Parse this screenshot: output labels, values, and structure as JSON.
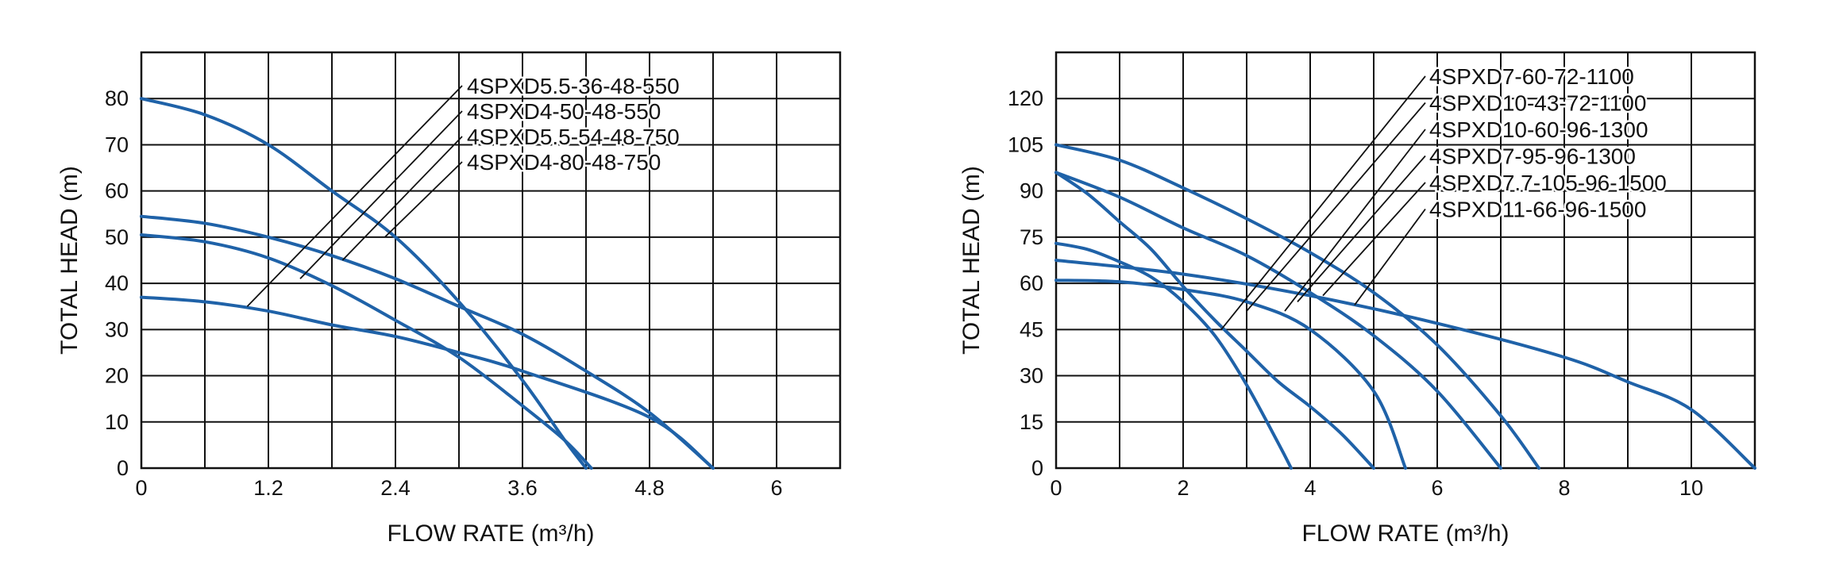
{
  "chart_data": [
    {
      "type": "line",
      "xlabel": "FLOW  RATE (m³/h)",
      "ylabel": "TOTAL HEAD (m)",
      "xlim": [
        0,
        6.6
      ],
      "ylim": [
        0,
        90
      ],
      "x_ticks": [
        0,
        1.2,
        2.4,
        3.6,
        4.8,
        6
      ],
      "y_ticks": [
        0,
        10,
        20,
        30,
        40,
        50,
        60,
        70,
        80
      ],
      "x_tick_labels": [
        "0",
        "1.2",
        "2.4",
        "3.6",
        "4.8",
        "6"
      ],
      "y_tick_labels": [
        "0",
        "10",
        "20",
        "30",
        "40",
        "50",
        "60",
        "70",
        "80"
      ],
      "grid": true,
      "legend_position": "top-right",
      "series": [
        {
          "name": "4SPXD5.5-36-48-550",
          "x": [
            0,
            0.6,
            1.2,
            1.8,
            2.4,
            3.0,
            3.6,
            4.0,
            4.2
          ],
          "y": [
            80,
            76.5,
            70,
            60,
            50,
            36,
            19,
            6,
            0
          ],
          "leader_end": [
            1.0,
            35
          ]
        },
        {
          "name": "4SPXD4-50-48-550",
          "x": [
            0,
            0.6,
            1.2,
            1.8,
            2.4,
            3.0,
            3.6,
            4.8,
            5.4
          ],
          "y": [
            37,
            36,
            34,
            31,
            28.5,
            25,
            21,
            11,
            0
          ],
          "leader_end": [
            1.5,
            41
          ]
        },
        {
          "name": "4SPXD5.5-54-48-750",
          "x": [
            0,
            0.6,
            1.2,
            1.8,
            2.4,
            3.0,
            3.6,
            4.2,
            4.8,
            5.4
          ],
          "y": [
            54.5,
            53,
            50,
            46,
            41,
            35,
            29,
            21,
            12,
            0
          ],
          "leader_end": [
            1.9,
            45
          ]
        },
        {
          "name": "4SPXD4-80-48-750",
          "x": [
            0,
            0.6,
            1.2,
            1.8,
            2.4,
            3.0,
            3.6,
            4.0,
            4.25
          ],
          "y": [
            50.5,
            49,
            45.5,
            39.5,
            32,
            24,
            13.5,
            6,
            0
          ],
          "leader_end": [
            2.3,
            50
          ]
        }
      ]
    },
    {
      "type": "line",
      "xlabel": "FLOW  RATE (m³/h)",
      "ylabel": "TOTAL HEAD (m)",
      "xlim": [
        0,
        11
      ],
      "ylim": [
        0,
        135
      ],
      "x_ticks": [
        0,
        2,
        4,
        6,
        8,
        10
      ],
      "y_ticks": [
        0,
        15,
        30,
        45,
        60,
        75,
        90,
        105,
        120
      ],
      "x_tick_labels": [
        "0",
        "2",
        "4",
        "6",
        "8",
        "10"
      ],
      "y_tick_labels": [
        "0",
        "15",
        "30",
        "45",
        "60",
        "75",
        "90",
        "105",
        "120"
      ],
      "grid": true,
      "legend_position": "top-right",
      "series": [
        {
          "name": "4SPXD7-60-72-1100",
          "x": [
            0,
            0.5,
            1.0,
            1.5,
            2.0,
            2.5,
            3.0,
            3.5,
            3.7
          ],
          "y": [
            73,
            71,
            67,
            62,
            54,
            43,
            27,
            8,
            0
          ],
          "leader_end": [
            2.6,
            45
          ]
        },
        {
          "name": "4SPXD10-43-72-1100",
          "x": [
            0,
            1,
            2,
            3,
            4,
            5,
            5.5
          ],
          "y": [
            61,
            60.5,
            58,
            54,
            45,
            25,
            0
          ],
          "leader_end": [
            3.0,
            51
          ]
        },
        {
          "name": "4SPXD10-60-96-1300",
          "x": [
            0,
            1,
            2,
            3,
            4,
            5,
            6,
            7
          ],
          "y": [
            96,
            88,
            78,
            69,
            57,
            43,
            25,
            0
          ],
          "leader_end": [
            3.6,
            51
          ]
        },
        {
          "name": "4SPXD7-95-96-1300",
          "x": [
            0,
            0.5,
            1.0,
            1.5,
            2.0,
            2.5,
            3.0,
            3.5,
            4.0,
            4.5,
            5.0
          ],
          "y": [
            96,
            89,
            80,
            71,
            59,
            48,
            38,
            28,
            20,
            11,
            0
          ],
          "leader_end": [
            3.8,
            54
          ]
        },
        {
          "name": "4SPXD7.7-105-96-1500",
          "x": [
            0,
            1,
            2,
            3,
            4,
            5,
            6,
            7,
            7.6
          ],
          "y": [
            105,
            100,
            91,
            81,
            70,
            57,
            40,
            17,
            0
          ],
          "leader_end": [
            4.2,
            56
          ]
        },
        {
          "name": "4SPXD11-66-96-1500",
          "x": [
            0,
            2,
            4,
            6,
            8,
            9,
            10,
            11
          ],
          "y": [
            67.5,
            63,
            56,
            47,
            36,
            28,
            19,
            0
          ],
          "leader_end": [
            4.7,
            53
          ]
        }
      ]
    }
  ]
}
